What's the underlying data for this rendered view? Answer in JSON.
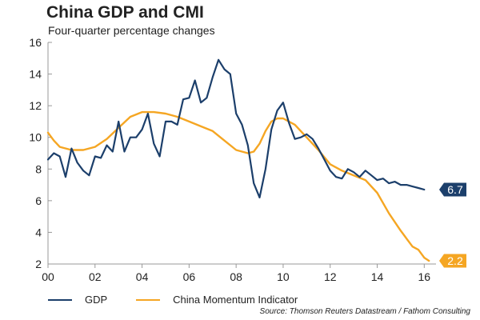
{
  "title": "China GDP and CMI",
  "subtitle": "Four-quarter percentage changes",
  "source": "Source: Thomson Reuters Datastream / Fathom Consulting",
  "colors": {
    "gdp": "#1c3f6b",
    "cmi": "#f5a623",
    "axis": "#999999"
  },
  "chart_data": {
    "type": "line",
    "title": "China GDP and CMI",
    "subtitle": "Four-quarter percentage changes",
    "xlabel": "",
    "ylabel": "",
    "xlim": [
      2000,
      2016.5
    ],
    "ylim": [
      2,
      16
    ],
    "x_ticks": [
      {
        "x": 2000,
        "label": "00"
      },
      {
        "x": 2002,
        "label": "02"
      },
      {
        "x": 2004,
        "label": "04"
      },
      {
        "x": 2006,
        "label": "06"
      },
      {
        "x": 2008,
        "label": "08"
      },
      {
        "x": 2010,
        "label": "10"
      },
      {
        "x": 2012,
        "label": "12"
      },
      {
        "x": 2014,
        "label": "14"
      },
      {
        "x": 2016,
        "label": "16"
      }
    ],
    "y_ticks": [
      2,
      4,
      6,
      8,
      10,
      12,
      14,
      16
    ],
    "grid": false,
    "legend_position": "bottom-left",
    "series": [
      {
        "name": "GDP",
        "color": "#1c3f6b",
        "end_label": "6.7",
        "points": [
          [
            2000.0,
            8.6
          ],
          [
            2000.25,
            9.0
          ],
          [
            2000.5,
            8.8
          ],
          [
            2000.75,
            7.5
          ],
          [
            2001.0,
            9.3
          ],
          [
            2001.25,
            8.4
          ],
          [
            2001.5,
            7.9
          ],
          [
            2001.75,
            7.6
          ],
          [
            2002.0,
            8.8
          ],
          [
            2002.25,
            8.7
          ],
          [
            2002.5,
            9.5
          ],
          [
            2002.75,
            9.1
          ],
          [
            2003.0,
            11.0
          ],
          [
            2003.25,
            9.1
          ],
          [
            2003.5,
            10.0
          ],
          [
            2003.75,
            10.0
          ],
          [
            2004.0,
            10.5
          ],
          [
            2004.25,
            11.5
          ],
          [
            2004.5,
            9.6
          ],
          [
            2004.75,
            8.8
          ],
          [
            2005.0,
            11.0
          ],
          [
            2005.25,
            11.0
          ],
          [
            2005.5,
            10.8
          ],
          [
            2005.75,
            12.4
          ],
          [
            2006.0,
            12.5
          ],
          [
            2006.25,
            13.6
          ],
          [
            2006.5,
            12.2
          ],
          [
            2006.75,
            12.5
          ],
          [
            2007.0,
            13.8
          ],
          [
            2007.25,
            14.9
          ],
          [
            2007.5,
            14.3
          ],
          [
            2007.75,
            14.0
          ],
          [
            2008.0,
            11.5
          ],
          [
            2008.25,
            10.8
          ],
          [
            2008.5,
            9.5
          ],
          [
            2008.75,
            7.1
          ],
          [
            2009.0,
            6.2
          ],
          [
            2009.25,
            8.0
          ],
          [
            2009.5,
            10.5
          ],
          [
            2009.75,
            11.7
          ],
          [
            2010.0,
            12.2
          ],
          [
            2010.25,
            10.9
          ],
          [
            2010.5,
            9.9
          ],
          [
            2010.75,
            10.0
          ],
          [
            2011.0,
            10.2
          ],
          [
            2011.25,
            9.9
          ],
          [
            2011.5,
            9.3
          ],
          [
            2011.75,
            8.6
          ],
          [
            2012.0,
            7.9
          ],
          [
            2012.25,
            7.5
          ],
          [
            2012.5,
            7.4
          ],
          [
            2012.75,
            8.0
          ],
          [
            2013.0,
            7.8
          ],
          [
            2013.25,
            7.5
          ],
          [
            2013.5,
            7.9
          ],
          [
            2013.75,
            7.6
          ],
          [
            2014.0,
            7.3
          ],
          [
            2014.25,
            7.4
          ],
          [
            2014.5,
            7.1
          ],
          [
            2014.75,
            7.2
          ],
          [
            2015.0,
            7.0
          ],
          [
            2015.25,
            7.0
          ],
          [
            2015.5,
            6.9
          ],
          [
            2015.75,
            6.8
          ],
          [
            2016.0,
            6.7
          ]
        ]
      },
      {
        "name": "China Momentum Indicator",
        "color": "#f5a623",
        "end_label": "2.2",
        "points": [
          [
            2000.0,
            10.3
          ],
          [
            2000.25,
            9.8
          ],
          [
            2000.5,
            9.4
          ],
          [
            2001.0,
            9.2
          ],
          [
            2001.5,
            9.2
          ],
          [
            2002.0,
            9.4
          ],
          [
            2002.5,
            9.9
          ],
          [
            2003.0,
            10.6
          ],
          [
            2003.5,
            11.3
          ],
          [
            2004.0,
            11.6
          ],
          [
            2004.5,
            11.6
          ],
          [
            2005.0,
            11.5
          ],
          [
            2005.5,
            11.3
          ],
          [
            2006.0,
            11.0
          ],
          [
            2006.5,
            10.7
          ],
          [
            2007.0,
            10.4
          ],
          [
            2007.5,
            9.8
          ],
          [
            2008.0,
            9.2
          ],
          [
            2008.5,
            9.0
          ],
          [
            2008.75,
            9.1
          ],
          [
            2009.0,
            9.6
          ],
          [
            2009.25,
            10.4
          ],
          [
            2009.5,
            11.0
          ],
          [
            2009.75,
            11.2
          ],
          [
            2010.0,
            11.2
          ],
          [
            2010.5,
            10.8
          ],
          [
            2011.0,
            10.0
          ],
          [
            2011.5,
            9.2
          ],
          [
            2012.0,
            8.3
          ],
          [
            2012.5,
            7.9
          ],
          [
            2013.0,
            7.6
          ],
          [
            2013.5,
            7.3
          ],
          [
            2014.0,
            6.5
          ],
          [
            2014.5,
            5.2
          ],
          [
            2015.0,
            4.1
          ],
          [
            2015.5,
            3.1
          ],
          [
            2015.75,
            2.9
          ],
          [
            2016.0,
            2.4
          ],
          [
            2016.2,
            2.2
          ]
        ]
      }
    ]
  }
}
